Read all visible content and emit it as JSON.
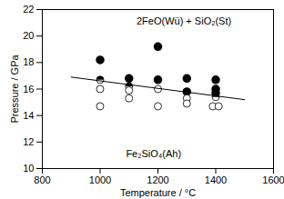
{
  "chart_data": {
    "type": "scatter",
    "x_label": "Temperature / °C",
    "y_label": "Pressure / GPa",
    "xlim": [
      800,
      1600
    ],
    "xticks": [
      800,
      1000,
      1200,
      1400,
      1600
    ],
    "ylim": [
      10,
      22
    ],
    "yticks": [
      10,
      12,
      14,
      16,
      18,
      20,
      22
    ],
    "series": [
      {
        "type": "scatter",
        "marker": "filled",
        "color": "#000000",
        "x": [
          1000,
          1100,
          1200,
          1200,
          1300,
          1300,
          1400,
          1400,
          1400
        ],
        "values": [
          18.2,
          16.8,
          19.2,
          16.7,
          16.8,
          15.8,
          16.7,
          16.0,
          15.7
        ]
      },
      {
        "type": "scatter",
        "marker": "half-filled",
        "color": "#000000",
        "x": [
          1000,
          1100,
          1400
        ],
        "values": [
          16.7,
          16.2,
          15.4
        ]
      },
      {
        "type": "scatter",
        "marker": "open",
        "color": "#000000",
        "x": [
          1000,
          1000,
          1100,
          1100,
          1200,
          1200,
          1300,
          1300,
          1390,
          1410
        ],
        "values": [
          16.0,
          14.7,
          15.9,
          15.3,
          16.0,
          14.7,
          15.3,
          14.9,
          14.7,
          14.7
        ]
      },
      {
        "type": "line",
        "color": "#000000",
        "x": [
          900,
          1500
        ],
        "values": [
          16.9,
          15.2
        ]
      }
    ],
    "annotations": [
      {
        "text": "2FeO(Wü) + SiO₂(St)",
        "x": 1290,
        "y": 21.1
      },
      {
        "text": "Fe₂SiO₄(Ah)",
        "x": 1185,
        "y": 11.1
      }
    ]
  }
}
